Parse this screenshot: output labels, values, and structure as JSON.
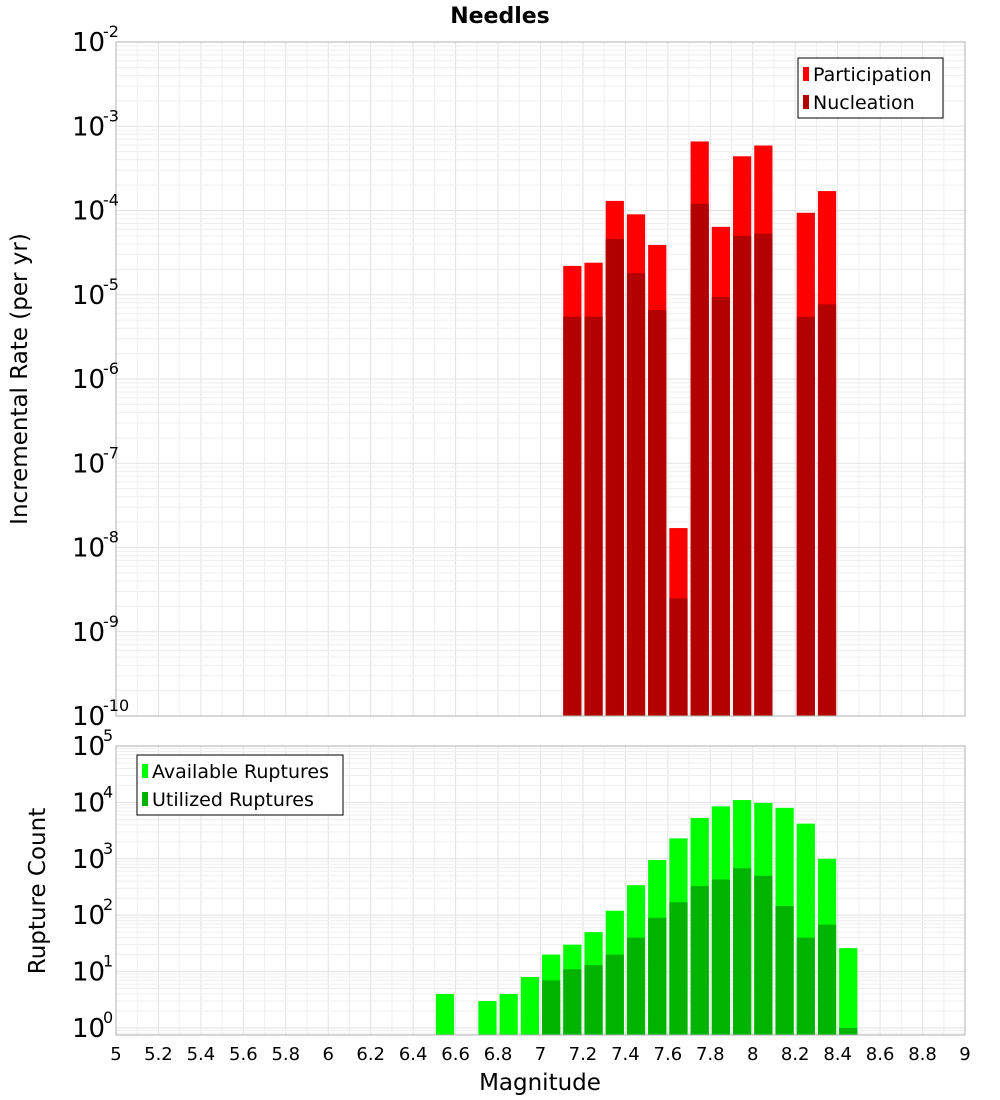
{
  "chart_data": [
    {
      "type": "bar",
      "title": "Needles",
      "xlabel": "",
      "ylabel": "Incremental Rate (per yr)",
      "yscale": "log",
      "xlim": [
        5,
        9
      ],
      "ylim": [
        1e-10,
        0.01
      ],
      "bar_width": 0.1,
      "legend": "top-right",
      "grid": true,
      "ytick_exponents": [
        -10,
        -9,
        -8,
        -7,
        -6,
        -5,
        -4,
        -3,
        -2
      ],
      "series": [
        {
          "name": "Participation",
          "color": "#ff0000",
          "x": [
            7.15,
            7.25,
            7.35,
            7.45,
            7.55,
            7.65,
            7.75,
            7.85,
            7.95,
            8.05,
            8.25,
            8.35
          ],
          "values": [
            2.2e-05,
            2.4e-05,
            0.00013,
            9e-05,
            3.9e-05,
            1.7e-08,
            0.00066,
            6.4e-05,
            0.00044,
            0.00059,
            9.4e-05,
            0.00017
          ]
        },
        {
          "name": "Nucleation",
          "color": "#b30000",
          "x": [
            7.15,
            7.25,
            7.35,
            7.45,
            7.55,
            7.65,
            7.75,
            7.85,
            7.95,
            8.05,
            8.25,
            8.35
          ],
          "values": [
            5.5e-06,
            5.5e-06,
            4.6e-05,
            1.8e-05,
            6.6e-06,
            2.5e-09,
            0.00012,
            9.4e-06,
            5e-05,
            5.3e-05,
            5.5e-06,
            7.7e-06
          ]
        }
      ]
    },
    {
      "type": "bar",
      "title": "",
      "xlabel": "Magnitude",
      "ylabel": "Rupture Count",
      "yscale": "log",
      "xlim": [
        5,
        9
      ],
      "ylim": [
        0.75,
        100000.0
      ],
      "bar_width": 0.1,
      "legend": "top-left",
      "grid": true,
      "xticks": [
        "5",
        "5.2",
        "5.4",
        "5.6",
        "5.8",
        "6",
        "6.2",
        "6.4",
        "6.6",
        "6.8",
        "7",
        "7.2",
        "7.4",
        "7.6",
        "7.8",
        "8",
        "8.2",
        "8.4",
        "8.6",
        "8.8",
        "9"
      ],
      "ytick_exponents": [
        0,
        1,
        2,
        3,
        4,
        5
      ],
      "series": [
        {
          "name": "Available Ruptures",
          "color": "#00ff00",
          "x": [
            6.55,
            6.75,
            6.85,
            6.95,
            7.05,
            7.15,
            7.25,
            7.35,
            7.45,
            7.55,
            7.65,
            7.75,
            7.85,
            7.95,
            8.05,
            8.15,
            8.25,
            8.35,
            8.45
          ],
          "values": [
            4,
            3,
            4,
            8,
            20,
            30,
            50,
            120,
            340,
            950,
            2300,
            5300,
            8500,
            11000,
            9800,
            8000,
            4200,
            1000,
            26
          ]
        },
        {
          "name": "Utilized Ruptures",
          "color": "#00b300",
          "x": [
            7.05,
            7.15,
            7.25,
            7.35,
            7.45,
            7.55,
            7.65,
            7.75,
            7.85,
            7.95,
            8.05,
            8.15,
            8.25,
            8.35,
            8.45
          ],
          "values": [
            7,
            11,
            13,
            20,
            40,
            90,
            170,
            330,
            430,
            680,
            500,
            145,
            40,
            68,
            1
          ]
        }
      ]
    }
  ]
}
